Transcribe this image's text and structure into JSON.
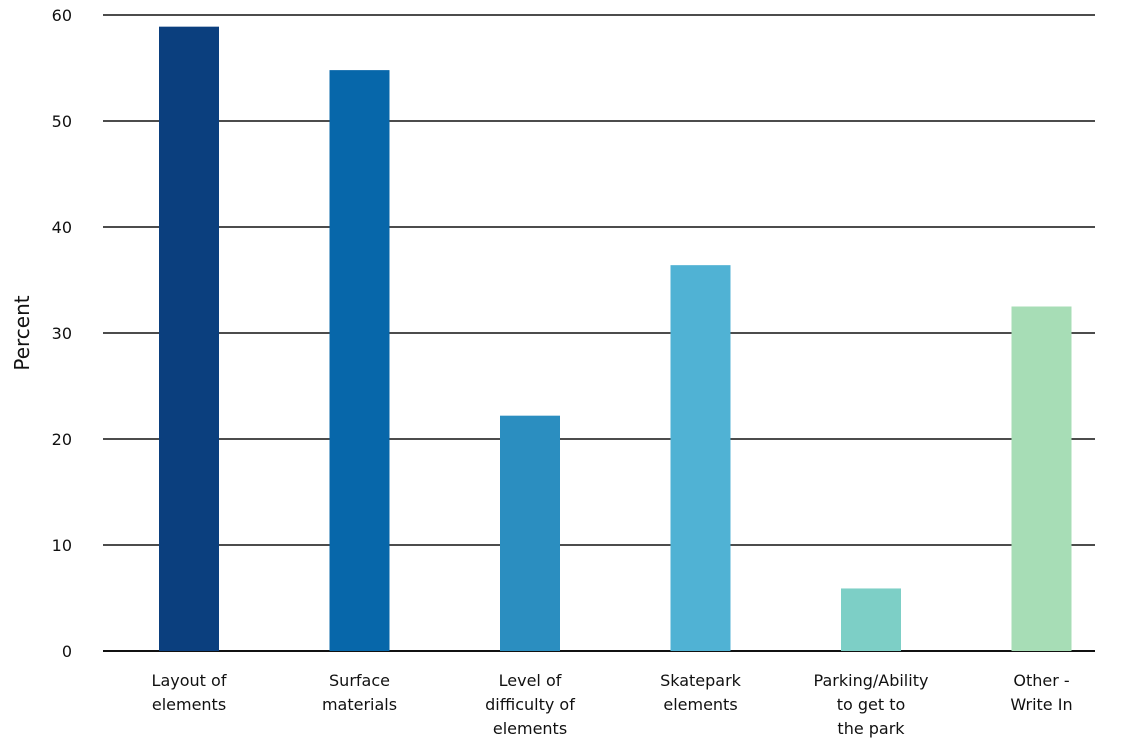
{
  "chart_data": {
    "type": "bar",
    "title": "",
    "xlabel": "",
    "ylabel": "Percent",
    "ylim": [
      0,
      60
    ],
    "yticks": [
      0,
      10,
      20,
      30,
      40,
      50,
      60
    ],
    "grid": true,
    "legend": "none",
    "categories": [
      [
        "Layout of",
        "elements"
      ],
      [
        "Surface",
        "materials"
      ],
      [
        "Level of",
        "difficulty of",
        "elements"
      ],
      [
        "Skatepark",
        "elements"
      ],
      [
        "Parking/Ability",
        "to get to",
        "the park"
      ],
      [
        "Other -",
        "Write In"
      ]
    ],
    "values": [
      58.9,
      54.8,
      22.2,
      36.4,
      5.9,
      32.5
    ],
    "colors": [
      "#0b3f7e",
      "#0767aa",
      "#2b8ec0",
      "#50b2d4",
      "#7dcfc6",
      "#a7ddb6"
    ]
  }
}
